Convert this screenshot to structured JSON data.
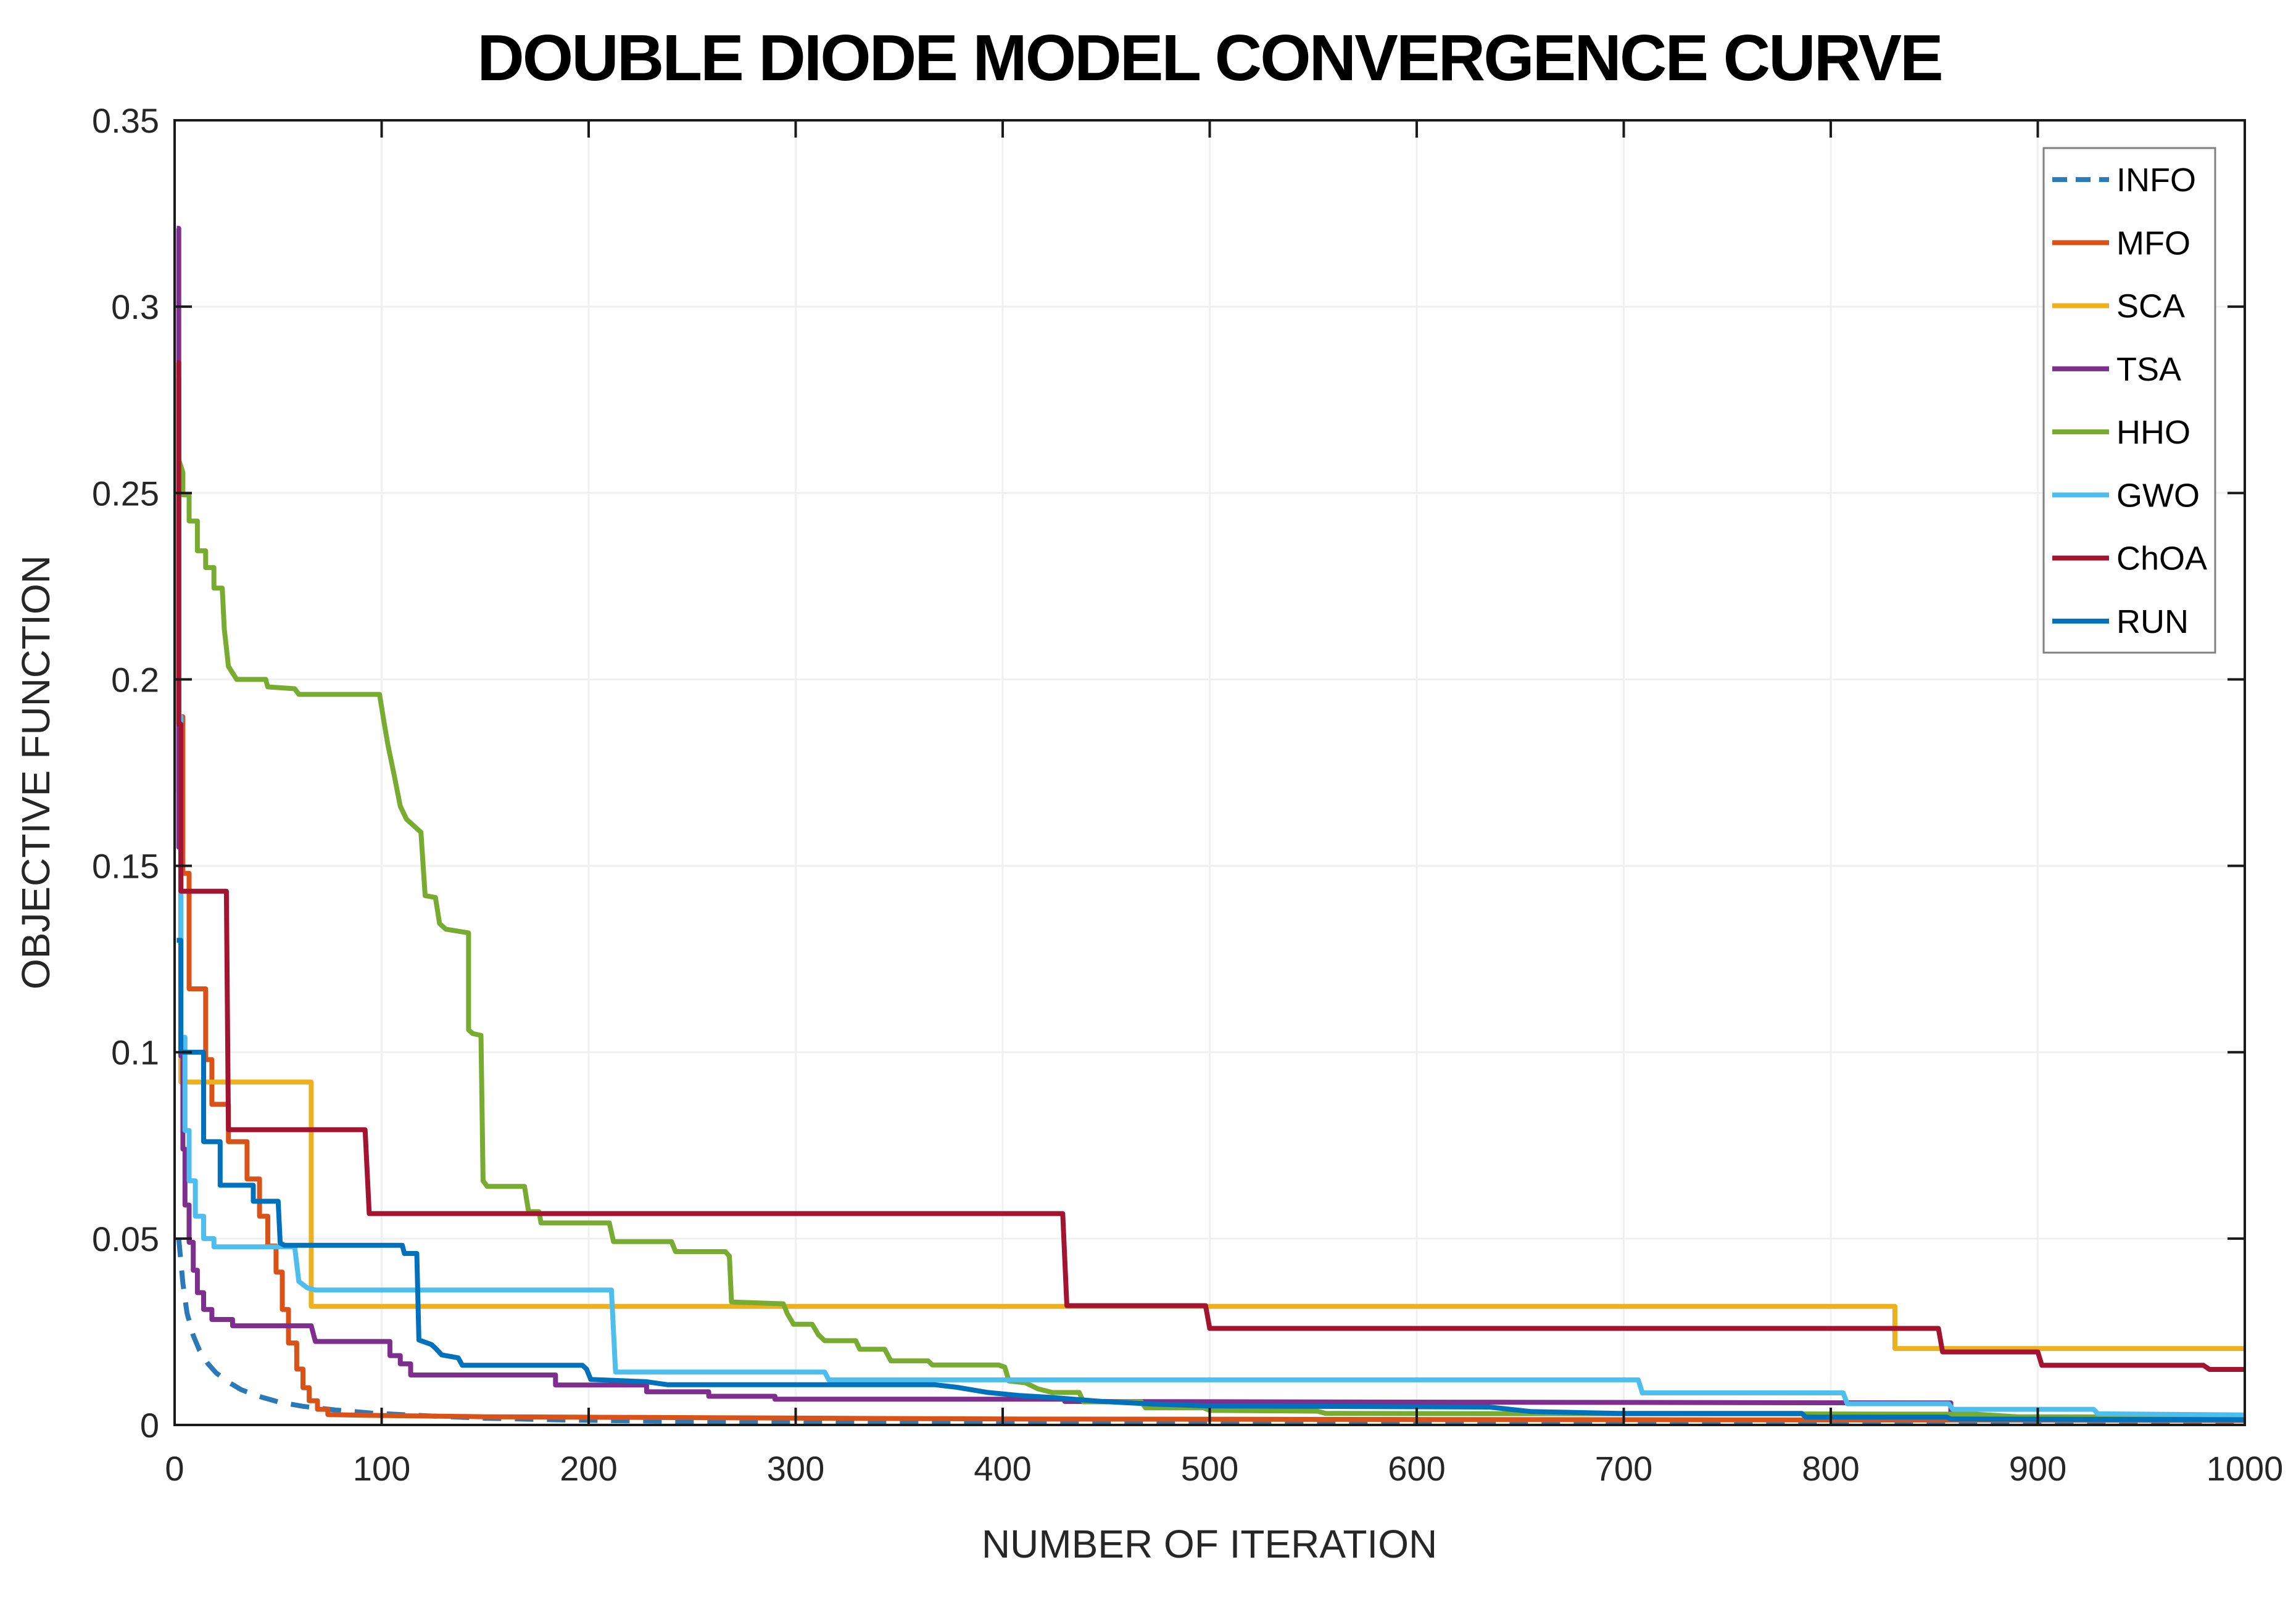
{
  "title": "DOUBLE DIODE MODEL CONVERGENCE CURVE",
  "xlabel": "NUMBER OF ITERATION",
  "ylabel": "OBJECTIVE FUNCTION",
  "legend": {
    "position": "top-right",
    "entries": [
      "INFO",
      "MFO",
      "SCA",
      "TSA",
      "HHO",
      "GWO",
      "ChOA",
      "RUN"
    ]
  },
  "colors": {
    "info": "#2a7ab9",
    "mfo": "#d95319",
    "sca": "#edb120",
    "tsa": "#7e2f8e",
    "hho": "#77ac30",
    "gwo": "#4dbeee",
    "choa": "#a2142f",
    "run": "#0072bd",
    "axis": "#1a1a1a",
    "grid": "#f0f0f0",
    "legend_border": "#808080"
  },
  "chart_data": {
    "type": "line",
    "title": "DOUBLE DIODE MODEL CONVERGENCE CURVE",
    "xlabel": "NUMBER OF ITERATION",
    "ylabel": "OBJECTIVE FUNCTION",
    "xlim": [
      0,
      1000
    ],
    "ylim": [
      0,
      0.35
    ],
    "x_ticks": [
      0,
      100,
      200,
      300,
      400,
      500,
      600,
      700,
      800,
      900,
      1000
    ],
    "y_ticks": [
      0,
      0.05,
      0.1,
      0.15,
      0.2,
      0.25,
      0.3,
      0.35
    ],
    "y_tick_labels": [
      "0",
      "0.05",
      "0.1",
      "0.15",
      "0.2",
      "0.25",
      "0.3",
      "0.35"
    ],
    "grid": true,
    "legend_position": "top-right",
    "series": [
      {
        "name": "INFO",
        "color": "#2a7ab9",
        "dash": true,
        "points": [
          [
            2,
            0.05
          ],
          [
            4,
            0.038
          ],
          [
            6,
            0.03
          ],
          [
            9,
            0.024
          ],
          [
            12,
            0.02
          ],
          [
            16,
            0.0165
          ],
          [
            20,
            0.014
          ],
          [
            26,
            0.0115
          ],
          [
            32,
            0.0095
          ],
          [
            40,
            0.0078
          ],
          [
            50,
            0.0062
          ],
          [
            62,
            0.005
          ],
          [
            78,
            0.004
          ],
          [
            95,
            0.0032
          ],
          [
            120,
            0.0025
          ],
          [
            150,
            0.0018
          ],
          [
            190,
            0.0013
          ],
          [
            240,
            0.001
          ],
          [
            320,
            0.0007
          ],
          [
            450,
            0.0005
          ],
          [
            700,
            0.0004
          ],
          [
            1000,
            0.0004
          ]
        ]
      },
      {
        "name": "MFO",
        "color": "#d95319",
        "dash": false,
        "points": [
          [
            1,
            0.281
          ],
          [
            2,
            0.281
          ],
          [
            2,
            0.19
          ],
          [
            4,
            0.19
          ],
          [
            4,
            0.148
          ],
          [
            7,
            0.148
          ],
          [
            7,
            0.117
          ],
          [
            15,
            0.117
          ],
          [
            15,
            0.098
          ],
          [
            18,
            0.098
          ],
          [
            18,
            0.086
          ],
          [
            26,
            0.086
          ],
          [
            26,
            0.076
          ],
          [
            35,
            0.076
          ],
          [
            35,
            0.066
          ],
          [
            41,
            0.066
          ],
          [
            41,
            0.056
          ],
          [
            45,
            0.056
          ],
          [
            45,
            0.048
          ],
          [
            49,
            0.048
          ],
          [
            49,
            0.041
          ],
          [
            52,
            0.041
          ],
          [
            52,
            0.031
          ],
          [
            55,
            0.031
          ],
          [
            55,
            0.022
          ],
          [
            59,
            0.022
          ],
          [
            59,
            0.015
          ],
          [
            62,
            0.015
          ],
          [
            62,
            0.01
          ],
          [
            65,
            0.01
          ],
          [
            65,
            0.0065
          ],
          [
            69,
            0.0065
          ],
          [
            69,
            0.0042
          ],
          [
            74,
            0.0042
          ],
          [
            74,
            0.0028
          ],
          [
            90,
            0.0026
          ],
          [
            150,
            0.0022
          ],
          [
            400,
            0.0016
          ],
          [
            1000,
            0.0012
          ]
        ]
      },
      {
        "name": "SCA",
        "color": "#edb120",
        "dash": false,
        "points": [
          [
            1,
            0.272
          ],
          [
            2,
            0.272
          ],
          [
            2,
            0.17
          ],
          [
            3,
            0.17
          ],
          [
            3,
            0.092
          ],
          [
            66,
            0.092
          ],
          [
            66,
            0.0318
          ],
          [
            831,
            0.0318
          ],
          [
            831,
            0.0205
          ],
          [
            1000,
            0.0205
          ]
        ]
      },
      {
        "name": "TSA",
        "color": "#7e2f8e",
        "dash": false,
        "points": [
          [
            1,
            0.321
          ],
          [
            2,
            0.321
          ],
          [
            2,
            0.155
          ],
          [
            3,
            0.155
          ],
          [
            3,
            0.099
          ],
          [
            4,
            0.099
          ],
          [
            4,
            0.074
          ],
          [
            5,
            0.074
          ],
          [
            5,
            0.059
          ],
          [
            7,
            0.059
          ],
          [
            7,
            0.049
          ],
          [
            9,
            0.049
          ],
          [
            9,
            0.0415
          ],
          [
            11,
            0.0415
          ],
          [
            11,
            0.0355
          ],
          [
            14,
            0.0355
          ],
          [
            14,
            0.031
          ],
          [
            18,
            0.031
          ],
          [
            18,
            0.0283
          ],
          [
            28,
            0.0283
          ],
          [
            28,
            0.0266
          ],
          [
            66,
            0.0266
          ],
          [
            68,
            0.0224
          ],
          [
            104,
            0.0224
          ],
          [
            104,
            0.0186
          ],
          [
            109,
            0.0186
          ],
          [
            109,
            0.0164
          ],
          [
            114,
            0.0164
          ],
          [
            114,
            0.0134
          ],
          [
            184,
            0.0134
          ],
          [
            184,
            0.0107
          ],
          [
            228,
            0.0107
          ],
          [
            228,
            0.0089
          ],
          [
            258,
            0.0089
          ],
          [
            258,
            0.0077
          ],
          [
            290,
            0.0077
          ],
          [
            290,
            0.0069
          ],
          [
            430,
            0.0069
          ],
          [
            430,
            0.0063
          ],
          [
            620,
            0.0061
          ],
          [
            858,
            0.0059
          ],
          [
            858,
            0.0021
          ],
          [
            1000,
            0.0021
          ]
        ]
      },
      {
        "name": "HHO",
        "color": "#77ac30",
        "dash": false,
        "points": [
          [
            1,
            0.272
          ],
          [
            2,
            0.272
          ],
          [
            2,
            0.259
          ],
          [
            4,
            0.2555
          ],
          [
            4,
            0.2495
          ],
          [
            7,
            0.2495
          ],
          [
            7,
            0.2425
          ],
          [
            11,
            0.2425
          ],
          [
            11,
            0.2345
          ],
          [
            15,
            0.2345
          ],
          [
            15,
            0.23
          ],
          [
            19,
            0.23
          ],
          [
            19,
            0.2245
          ],
          [
            23,
            0.2245
          ],
          [
            24,
            0.2135
          ],
          [
            25,
            0.2085
          ],
          [
            26,
            0.2035
          ],
          [
            30,
            0.2
          ],
          [
            44,
            0.2
          ],
          [
            45,
            0.198
          ],
          [
            58,
            0.1975
          ],
          [
            60,
            0.196
          ],
          [
            99,
            0.196
          ],
          [
            101,
            0.189
          ],
          [
            103,
            0.1825
          ],
          [
            106,
            0.1745
          ],
          [
            109,
            0.166
          ],
          [
            112,
            0.1625
          ],
          [
            119,
            0.159
          ],
          [
            121,
            0.142
          ],
          [
            126,
            0.1415
          ],
          [
            128,
            0.1345
          ],
          [
            131,
            0.133
          ],
          [
            142,
            0.132
          ],
          [
            142,
            0.106
          ],
          [
            144,
            0.105
          ],
          [
            148,
            0.1045
          ],
          [
            149,
            0.0655
          ],
          [
            151,
            0.064
          ],
          [
            169,
            0.064
          ],
          [
            171,
            0.0572
          ],
          [
            176,
            0.0572
          ],
          [
            177,
            0.0542
          ],
          [
            210,
            0.0542
          ],
          [
            212,
            0.0492
          ],
          [
            240,
            0.0492
          ],
          [
            242,
            0.0465
          ],
          [
            266,
            0.0465
          ],
          [
            268,
            0.0453
          ],
          [
            269,
            0.033
          ],
          [
            294,
            0.0325
          ],
          [
            296,
            0.0298
          ],
          [
            299,
            0.027
          ],
          [
            308,
            0.027
          ],
          [
            311,
            0.0242
          ],
          [
            314,
            0.0226
          ],
          [
            329,
            0.0226
          ],
          [
            331,
            0.0203
          ],
          [
            343,
            0.0203
          ],
          [
            346,
            0.0172
          ],
          [
            364,
            0.0172
          ],
          [
            366,
            0.0161
          ],
          [
            398,
            0.0161
          ],
          [
            401,
            0.0155
          ],
          [
            403,
            0.0118
          ],
          [
            411,
            0.0113
          ],
          [
            417,
            0.0097
          ],
          [
            424,
            0.0087
          ],
          [
            437,
            0.0087
          ],
          [
            439,
            0.0062
          ],
          [
            467,
            0.0062
          ],
          [
            469,
            0.0046
          ],
          [
            497,
            0.0046
          ],
          [
            500,
            0.0039
          ],
          [
            552,
            0.0037
          ],
          [
            556,
            0.0031
          ],
          [
            870,
            0.0029
          ],
          [
            890,
            0.0022
          ],
          [
            1000,
            0.0021
          ]
        ]
      },
      {
        "name": "GWO",
        "color": "#4dbeee",
        "dash": false,
        "points": [
          [
            1,
            0.19
          ],
          [
            3,
            0.19
          ],
          [
            3,
            0.104
          ],
          [
            5,
            0.104
          ],
          [
            5,
            0.079
          ],
          [
            7,
            0.079
          ],
          [
            7,
            0.0655
          ],
          [
            10,
            0.0655
          ],
          [
            10,
            0.056
          ],
          [
            14,
            0.056
          ],
          [
            14,
            0.05
          ],
          [
            19,
            0.05
          ],
          [
            19,
            0.0478
          ],
          [
            58,
            0.0478
          ],
          [
            60,
            0.0385
          ],
          [
            64,
            0.0368
          ],
          [
            68,
            0.0362
          ],
          [
            211,
            0.0362
          ],
          [
            213,
            0.0142
          ],
          [
            314,
            0.0142
          ],
          [
            316,
            0.0121
          ],
          [
            707,
            0.0121
          ],
          [
            709,
            0.0086
          ],
          [
            806,
            0.0086
          ],
          [
            808,
            0.0057
          ],
          [
            857,
            0.0057
          ],
          [
            859,
            0.0042
          ],
          [
            927,
            0.0042
          ],
          [
            929,
            0.003
          ],
          [
            1000,
            0.0027
          ]
        ]
      },
      {
        "name": "ChOA",
        "color": "#a2142f",
        "dash": false,
        "points": [
          [
            1,
            0.285
          ],
          [
            2,
            0.285
          ],
          [
            2,
            0.188
          ],
          [
            3,
            0.188
          ],
          [
            3,
            0.1432
          ],
          [
            25,
            0.1432
          ],
          [
            26,
            0.0792
          ],
          [
            92,
            0.0792
          ],
          [
            94,
            0.0567
          ],
          [
            429,
            0.0567
          ],
          [
            431,
            0.032
          ],
          [
            498,
            0.032
          ],
          [
            500,
            0.0259
          ],
          [
            852,
            0.0259
          ],
          [
            854,
            0.0196
          ],
          [
            900,
            0.0196
          ],
          [
            902,
            0.016
          ],
          [
            980,
            0.016
          ],
          [
            983,
            0.0149
          ],
          [
            1000,
            0.0149
          ]
        ]
      },
      {
        "name": "RUN",
        "color": "#0072bd",
        "dash": false,
        "points": [
          [
            1,
            0.13
          ],
          [
            3,
            0.13
          ],
          [
            3,
            0.1
          ],
          [
            14,
            0.1
          ],
          [
            14,
            0.076
          ],
          [
            22,
            0.076
          ],
          [
            22,
            0.0643
          ],
          [
            38,
            0.0643
          ],
          [
            38,
            0.06
          ],
          [
            50,
            0.06
          ],
          [
            51,
            0.0488
          ],
          [
            53,
            0.0482
          ],
          [
            110,
            0.0482
          ],
          [
            111,
            0.046
          ],
          [
            117,
            0.046
          ],
          [
            118,
            0.0228
          ],
          [
            124,
            0.0216
          ],
          [
            126,
            0.0206
          ],
          [
            129,
            0.0188
          ],
          [
            137,
            0.018
          ],
          [
            139,
            0.016
          ],
          [
            197,
            0.016
          ],
          [
            199,
            0.015
          ],
          [
            201,
            0.0122
          ],
          [
            228,
            0.0116
          ],
          [
            238,
            0.0108
          ],
          [
            367,
            0.0108
          ],
          [
            378,
            0.0101
          ],
          [
            393,
            0.0087
          ],
          [
            408,
            0.0079
          ],
          [
            423,
            0.0074
          ],
          [
            448,
            0.0063
          ],
          [
            473,
            0.0056
          ],
          [
            500,
            0.0051
          ],
          [
            635,
            0.0048
          ],
          [
            655,
            0.0036
          ],
          [
            698,
            0.0031
          ],
          [
            786,
            0.0031
          ],
          [
            788,
            0.0021
          ],
          [
            856,
            0.0021
          ],
          [
            858,
            0.0016
          ],
          [
            1000,
            0.0014
          ]
        ]
      }
    ]
  }
}
